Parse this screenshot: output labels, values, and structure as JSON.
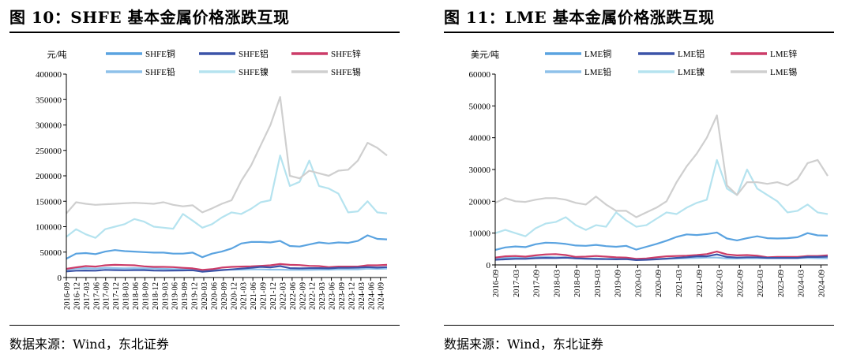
{
  "left": {
    "title": "图 10：SHFE 基本金属价格涨跌互现",
    "source": "数据来源：Wind，东北证券",
    "chart_data": {
      "type": "line",
      "ylabel": "元/吨",
      "ylim": [
        0,
        400000
      ],
      "yticks": [
        "400000",
        "350000",
        "300000",
        "250000",
        "200000",
        "150000",
        "100000",
        "50000",
        "0"
      ],
      "xticks": [
        "2016-09",
        "2016-12",
        "2017-03",
        "2017-06",
        "2017-09",
        "2017-12",
        "2018-03",
        "2018-06",
        "2018-09",
        "2018-12",
        "2019-03",
        "2019-06",
        "2019-09",
        "2019-12",
        "2020-03",
        "2020-06",
        "2020-09",
        "2020-12",
        "2021-03",
        "2021-06",
        "2021-09",
        "2021-12",
        "2022-03",
        "2022-06",
        "2022-09",
        "2022-12",
        "2023-03",
        "2023-06",
        "2023-09",
        "2023-12",
        "2024-03",
        "2024-06",
        "2024-09"
      ],
      "x_start": "2016-09",
      "x_end": "2024-11",
      "legend_position": "top",
      "series": [
        {
          "name": "SHFE铜",
          "color": "#5aa3e0",
          "values": [
            37000,
            47000,
            48000,
            46000,
            51000,
            54000,
            52000,
            51000,
            50000,
            49000,
            49000,
            47000,
            47000,
            49000,
            40000,
            47000,
            51000,
            57000,
            67000,
            70000,
            70000,
            69000,
            72000,
            62000,
            61000,
            65000,
            69000,
            67000,
            69000,
            68000,
            72000,
            83000,
            76000,
            75000
          ]
        },
        {
          "name": "SHFE铝",
          "color": "#3b54a8",
          "values": [
            12000,
            13500,
            13800,
            13500,
            15000,
            14500,
            14200,
            14500,
            14500,
            13800,
            13500,
            13800,
            14000,
            14200,
            11500,
            13000,
            14500,
            16000,
            17500,
            19000,
            21000,
            20000,
            22500,
            18500,
            18000,
            18500,
            18500,
            18000,
            19000,
            19000,
            19500,
            20500,
            19500,
            20500
          ]
        },
        {
          "name": "SHFE锌",
          "color": "#cc3c68",
          "values": [
            17000,
            20000,
            22500,
            21500,
            24000,
            25000,
            24500,
            24000,
            22000,
            21000,
            21000,
            20500,
            19000,
            18000,
            15000,
            16500,
            19500,
            21000,
            21500,
            22000,
            23000,
            24000,
            26500,
            25000,
            24500,
            23000,
            22500,
            20500,
            21500,
            21500,
            21500,
            24000,
            24000,
            25000
          ]
        },
        {
          "name": "SHFE铅",
          "color": "#8ec1ea",
          "values": [
            15000,
            18000,
            18500,
            17500,
            19000,
            18500,
            18000,
            18500,
            18000,
            17800,
            17000,
            16500,
            16500,
            16000,
            14000,
            14500,
            15000,
            15500,
            15500,
            16000,
            16000,
            15500,
            15500,
            15000,
            15000,
            15000,
            15500,
            15500,
            16000,
            16000,
            16000,
            17500,
            17000,
            17500
          ]
        },
        {
          "name": "SHFE镍",
          "color": "#b5e3ef",
          "values": [
            80000,
            95000,
            85000,
            78000,
            95000,
            100000,
            105000,
            115000,
            110000,
            100000,
            98000,
            96000,
            125000,
            112000,
            98000,
            105000,
            118000,
            128000,
            125000,
            135000,
            148000,
            152000,
            240000,
            180000,
            188000,
            230000,
            180000,
            175000,
            165000,
            128000,
            130000,
            150000,
            128000,
            126000
          ]
        },
        {
          "name": "SHFE锡",
          "color": "#cfcfcf",
          "values": [
            126000,
            148000,
            145000,
            143000,
            144000,
            145000,
            146000,
            147000,
            146000,
            145000,
            148000,
            143000,
            140000,
            142000,
            128000,
            136000,
            145000,
            152000,
            190000,
            220000,
            260000,
            300000,
            355000,
            200000,
            195000,
            210000,
            205000,
            200000,
            210000,
            212000,
            230000,
            265000,
            255000,
            240000
          ]
        }
      ]
    }
  },
  "right": {
    "title": "图 11：LME 基本金属价格涨跌互现",
    "source": "数据来源：Wind，东北证券",
    "chart_data": {
      "type": "line",
      "ylabel": "美元/吨",
      "ylim": [
        0,
        60000
      ],
      "yticks": [
        "60000",
        "50000",
        "40000",
        "30000",
        "20000",
        "10000",
        "0"
      ],
      "xticks": [
        "2016-09",
        "2017-03",
        "2017-09",
        "2018-03",
        "2018-09",
        "2019-03",
        "2019-09",
        "2020-03",
        "2020-09",
        "2021-03",
        "2021-09",
        "2022-03",
        "2022-09",
        "2023-03",
        "2023-09",
        "2024-03",
        "2024-09"
      ],
      "x_start": "2016-09",
      "x_end": "2024-11",
      "legend_position": "top",
      "series": [
        {
          "name": "LME铜",
          "color": "#5aa3e0",
          "values": [
            4700,
            5500,
            5800,
            5600,
            6500,
            7000,
            6900,
            6600,
            6100,
            6000,
            6300,
            5900,
            5700,
            6000,
            4800,
            5700,
            6600,
            7600,
            8800,
            9600,
            9400,
            9700,
            10200,
            8300,
            7700,
            8400,
            9000,
            8400,
            8300,
            8400,
            8700,
            10000,
            9300,
            9200
          ]
        },
        {
          "name": "LME铝",
          "color": "#3b54a8",
          "values": [
            1600,
            1750,
            1900,
            1900,
            2100,
            2200,
            2150,
            2250,
            2050,
            1950,
            1850,
            1800,
            1750,
            1800,
            1500,
            1600,
            1750,
            1950,
            2200,
            2400,
            2700,
            2700,
            3300,
            2500,
            2300,
            2400,
            2400,
            2200,
            2200,
            2200,
            2200,
            2500,
            2500,
            2600
          ]
        },
        {
          "name": "LME锌",
          "color": "#cc3c68",
          "values": [
            2300,
            2700,
            2800,
            2600,
            3000,
            3300,
            3400,
            3100,
            2500,
            2600,
            2800,
            2600,
            2400,
            2300,
            1900,
            2000,
            2400,
            2700,
            2800,
            2900,
            3100,
            3400,
            4200,
            3300,
            3000,
            3100,
            2900,
            2400,
            2500,
            2500,
            2500,
            2800,
            2800,
            3000
          ]
        },
        {
          "name": "LME铅",
          "color": "#8ec1ea",
          "values": [
            1900,
            2200,
            2300,
            2200,
            2400,
            2500,
            2400,
            2400,
            2000,
            1950,
            2000,
            1900,
            2000,
            1900,
            1700,
            1750,
            1850,
            1950,
            2000,
            2100,
            2200,
            2300,
            2300,
            2000,
            2000,
            2100,
            2100,
            2100,
            2100,
            2100,
            2100,
            2200,
            2100,
            2050
          ]
        },
        {
          "name": "LME镍",
          "color": "#b5e3ef",
          "values": [
            10000,
            11000,
            10000,
            9000,
            11500,
            13000,
            13500,
            15000,
            12500,
            11000,
            12500,
            12000,
            16500,
            14000,
            12000,
            12500,
            14500,
            16500,
            16000,
            18000,
            19500,
            20500,
            33000,
            24000,
            22000,
            30000,
            24000,
            22000,
            20000,
            16500,
            17000,
            19000,
            16500,
            16000
          ]
        },
        {
          "name": "LME锡",
          "color": "#cfcfcf",
          "values": [
            19500,
            21000,
            20000,
            19800,
            20500,
            21000,
            21000,
            20500,
            19500,
            19000,
            21500,
            19000,
            17000,
            17000,
            15000,
            16500,
            18000,
            20000,
            26000,
            31000,
            35000,
            40000,
            47000,
            25000,
            22000,
            26000,
            26000,
            25500,
            26000,
            25000,
            27000,
            32000,
            33000,
            28000
          ]
        }
      ]
    }
  }
}
